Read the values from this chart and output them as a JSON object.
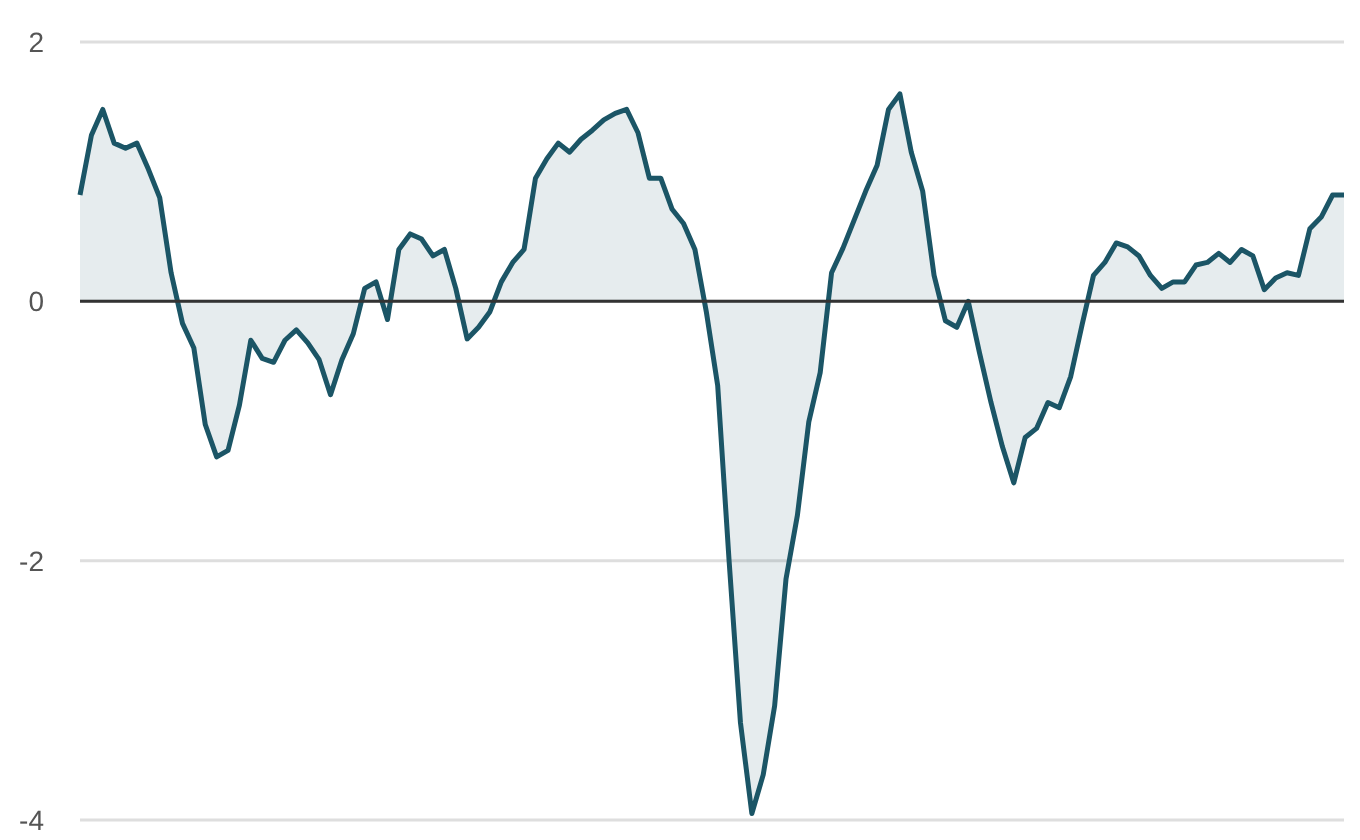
{
  "chart_data": {
    "type": "area",
    "categories": [
      null,
      null,
      null,
      null,
      null,
      null,
      null,
      null,
      null,
      null,
      null,
      null,
      null,
      null,
      null,
      null,
      null,
      null,
      null,
      null,
      null,
      null,
      null,
      null,
      null,
      null,
      null,
      null,
      null,
      null,
      null,
      null,
      null,
      null,
      null,
      null,
      null,
      null,
      null,
      null,
      null,
      null,
      null,
      null,
      null,
      null,
      null,
      null,
      null,
      null,
      null,
      null,
      null,
      null,
      null,
      null,
      null,
      null,
      null,
      null,
      null,
      null,
      null,
      null,
      null,
      null,
      null,
      null,
      null,
      null,
      null,
      null,
      null,
      null,
      null,
      null,
      null,
      null,
      null,
      null,
      null,
      null,
      null,
      null,
      null,
      null,
      null,
      null,
      null,
      null,
      null,
      null,
      null,
      null,
      null,
      null,
      null,
      null,
      null,
      null,
      null,
      null,
      null,
      null,
      null,
      null,
      null,
      null,
      null,
      null,
      null,
      null
    ],
    "series": [
      {
        "color": "#1b5566",
        "values": [
          0.82,
          1.28,
          1.48,
          1.22,
          1.18,
          1.22,
          1.02,
          0.8,
          0.22,
          -0.17,
          -0.36,
          -0.95,
          -1.2,
          -1.15,
          -0.8,
          -0.3,
          -0.44,
          -0.47,
          -0.3,
          -0.22,
          -0.32,
          -0.45,
          -0.72,
          -0.45,
          -0.25,
          0.1,
          0.15,
          -0.14,
          0.4,
          0.52,
          0.48,
          0.35,
          0.4,
          0.1,
          -0.29,
          -0.2,
          -0.08,
          0.15,
          0.3,
          0.4,
          0.95,
          1.1,
          1.22,
          1.15,
          1.25,
          1.32,
          1.4,
          1.45,
          1.48,
          1.3,
          0.95,
          0.95,
          0.71,
          0.6,
          0.4,
          -0.08,
          -0.65,
          -2.0,
          -3.25,
          -3.95,
          -3.65,
          -3.12,
          -2.14,
          -1.65,
          -0.93,
          -0.55,
          0.22,
          0.41,
          0.63,
          0.85,
          1.05,
          1.48,
          1.6,
          1.15,
          0.85,
          0.2,
          -0.15,
          -0.2,
          0.0,
          -0.4,
          -0.78,
          -1.12,
          -1.4,
          -1.05,
          -0.98,
          -0.78,
          -0.82,
          -0.58,
          -0.18,
          0.2,
          0.3,
          0.45,
          0.42,
          0.35,
          0.2,
          0.1,
          0.15,
          0.15,
          0.28,
          0.3,
          0.37,
          0.3,
          0.4,
          0.35,
          0.09,
          0.18,
          0.22,
          0.2,
          0.56,
          0.65,
          0.82,
          0.82
        ]
      }
    ],
    "ylim": [
      -4,
      2
    ],
    "yticks": [
      -4,
      -2,
      0,
      2
    ],
    "grid": "y",
    "ref_lines": [
      {
        "axis": "y",
        "value": 0,
        "color": "#333333"
      }
    ]
  }
}
